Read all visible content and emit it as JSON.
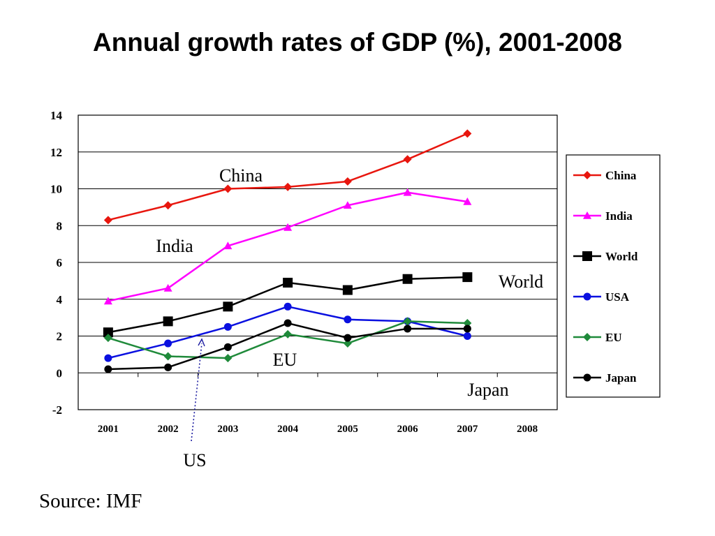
{
  "page": {
    "title": "Annual growth rates of GDP (%), 2001-2008",
    "source": "Source: IMF"
  },
  "chart_data": {
    "type": "line",
    "title": "Annual growth rates of GDP (%), 2001-2008",
    "xlabel": "",
    "ylabel": "",
    "x": [
      "2001",
      "2002",
      "2003",
      "2004",
      "2005",
      "2006",
      "2007",
      "2008"
    ],
    "ylim": [
      -2,
      14
    ],
    "yticks": [
      -2,
      0,
      2,
      4,
      6,
      8,
      10,
      12,
      14
    ],
    "yticks_labels": [
      "-2",
      "0",
      "2",
      "4",
      "6",
      "8",
      "10",
      "12",
      "14"
    ],
    "grid": "horizontal",
    "legend_position": "right",
    "series": [
      {
        "name": "China",
        "color": "#e8160e",
        "marker": "diamond",
        "values": [
          8.3,
          9.1,
          10.0,
          10.1,
          10.4,
          11.6,
          13.0,
          null
        ]
      },
      {
        "name": "India",
        "color": "#ff00ff",
        "marker": "triangle",
        "values": [
          3.9,
          4.6,
          6.9,
          7.9,
          9.1,
          9.8,
          9.3,
          null
        ]
      },
      {
        "name": "World",
        "color": "#000000",
        "marker": "square",
        "values": [
          2.2,
          2.8,
          3.6,
          4.9,
          4.5,
          5.1,
          5.2,
          null
        ]
      },
      {
        "name": "USA",
        "color": "#0a10e0",
        "marker": "circle",
        "values": [
          0.8,
          1.6,
          2.5,
          3.6,
          2.9,
          2.8,
          2.0,
          null
        ]
      },
      {
        "name": "EU",
        "color": "#1f8a3a",
        "marker": "diamond",
        "values": [
          1.9,
          0.9,
          0.8,
          2.1,
          1.6,
          2.8,
          2.7,
          null
        ]
      },
      {
        "name": "Japan",
        "color": "#000000",
        "marker": "circle",
        "values": [
          0.2,
          0.3,
          1.4,
          2.7,
          1.9,
          2.4,
          2.4,
          null
        ]
      }
    ],
    "annotations": [
      {
        "text": "China",
        "series": "China"
      },
      {
        "text": "India",
        "series": "India"
      },
      {
        "text": "World",
        "series": "World"
      },
      {
        "text": "EU",
        "series": "EU"
      },
      {
        "text": "Japan",
        "series": "Japan"
      },
      {
        "text": "US",
        "series": "USA"
      }
    ]
  }
}
